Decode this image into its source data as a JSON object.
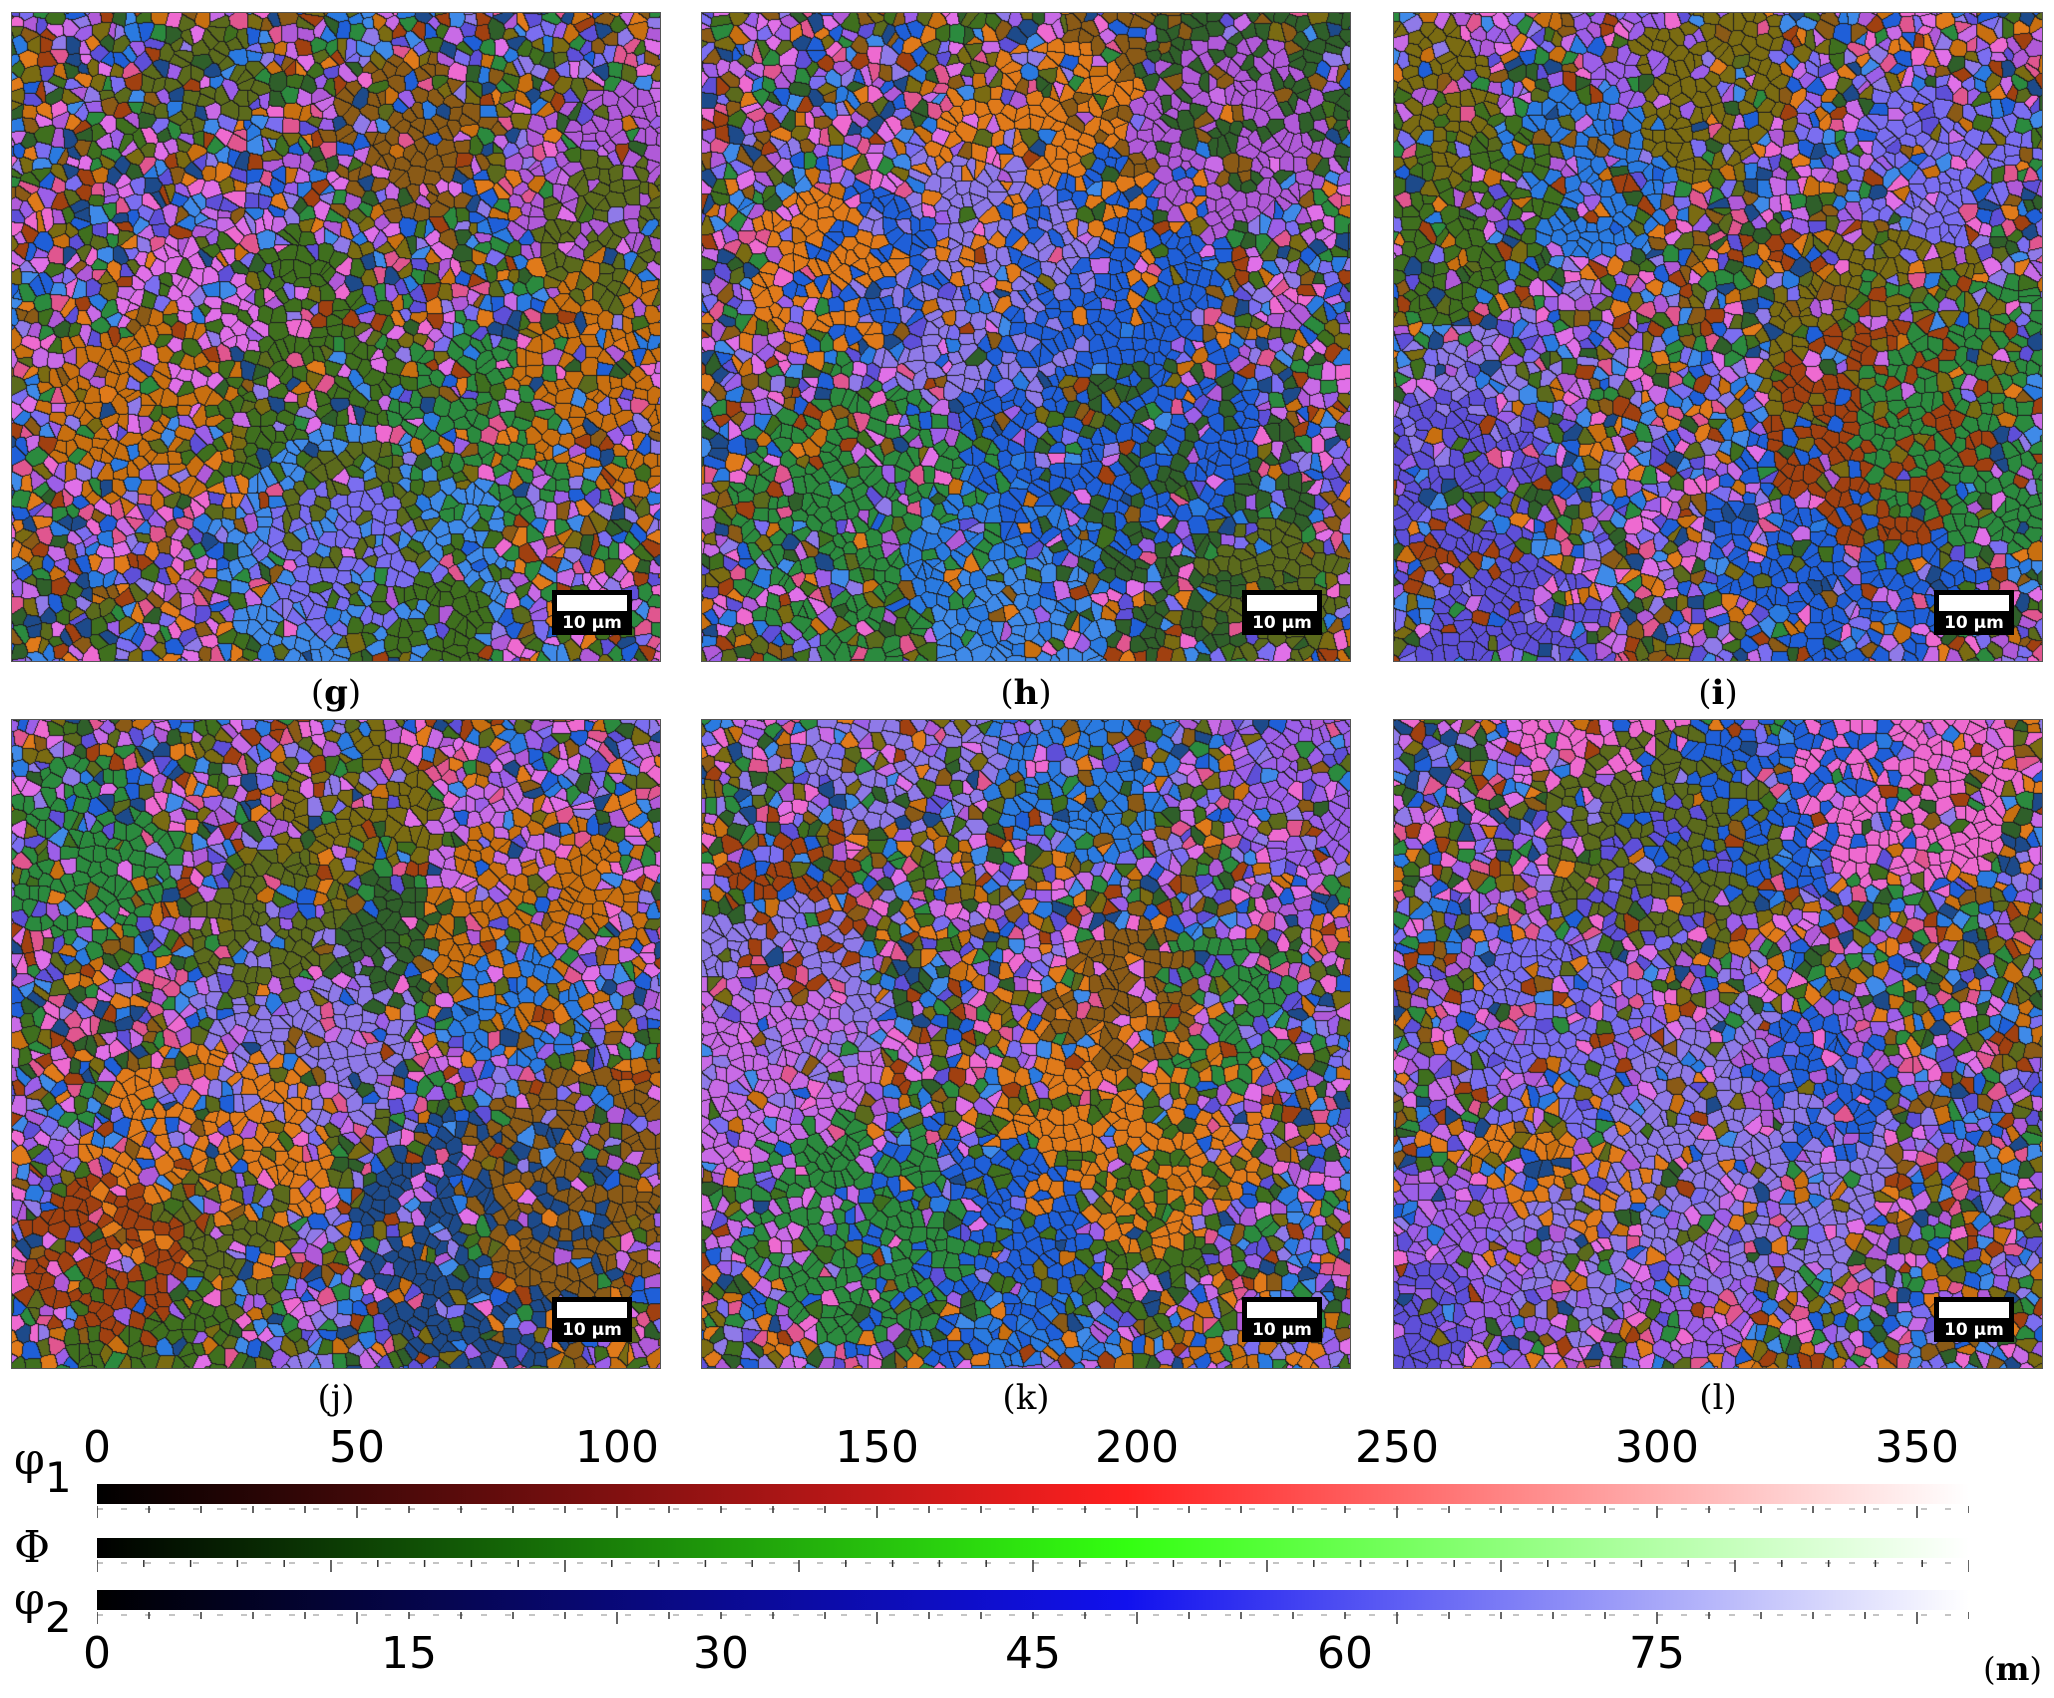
{
  "panels": [
    {
      "id": "g",
      "label": "g",
      "scalebar": "10 µm"
    },
    {
      "id": "h",
      "label": "h",
      "scalebar": "10 µm"
    },
    {
      "id": "i",
      "label": "i",
      "scalebar": "10 µm"
    },
    {
      "id": "j",
      "label": "j",
      "scalebar": "10 µm"
    },
    {
      "id": "k",
      "label": "k",
      "scalebar": "10 µm"
    },
    {
      "id": "l",
      "label": "l",
      "scalebar": "10 µm"
    }
  ],
  "legend": {
    "phi1": {
      "symbol": "φ",
      "subscript": "1",
      "color_from": "#000000",
      "color_mid": "#ff2020",
      "color_to": "#ffffff",
      "ticks": [
        "0",
        "50",
        "100",
        "150",
        "200",
        "250",
        "300",
        "350"
      ]
    },
    "Phi": {
      "symbol": "Φ",
      "color_from": "#000000",
      "color_mid": "#33ff11",
      "color_to": "#ffffff"
    },
    "phi2": {
      "symbol": "φ",
      "subscript": "2",
      "color_from": "#000000",
      "color_mid": "#1111ee",
      "color_to": "#ffffff",
      "ticks": [
        "0",
        "15",
        "30",
        "45",
        "60",
        "75"
      ]
    }
  },
  "figure_label": "m",
  "grain_palette": [
    "#c86be6",
    "#9c5fe8",
    "#7b6ef0",
    "#ee6ad0",
    "#e070e8",
    "#2b8a3e",
    "#3f6f1e",
    "#5b6a1c",
    "#7a6b12",
    "#2f5f2a",
    "#2a7ae0",
    "#1f5fd8",
    "#3f8ae8",
    "#e07a1a",
    "#c86f10",
    "#8a5a16",
    "#e0568f",
    "#b05ad8",
    "#5e4fd8",
    "#8f7ae8",
    "#1d4a8a",
    "#a04010"
  ]
}
